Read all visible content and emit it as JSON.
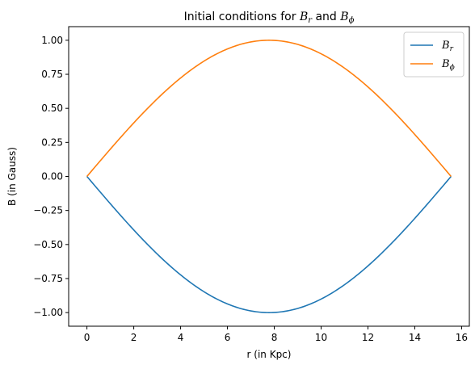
{
  "chart_data": {
    "type": "line",
    "title": {
      "main": "Initial conditions for ",
      "sym1": "B",
      "sub1": "r",
      "mid": " and ",
      "sym2": "B",
      "sub2": "ϕ"
    },
    "xlabel": "r (in Kpc)",
    "ylabel": "B (in Gauss)",
    "xlim": [
      -0.78,
      16.33
    ],
    "ylim": [
      -1.1,
      1.1
    ],
    "xticks": [
      0,
      2,
      4,
      6,
      8,
      10,
      12,
      14,
      16
    ],
    "xtick_labels": [
      "0",
      "2",
      "4",
      "6",
      "8",
      "10",
      "12",
      "14",
      "16"
    ],
    "yticks": [
      -1.0,
      -0.75,
      -0.5,
      -0.25,
      0.0,
      0.25,
      0.5,
      0.75,
      1.0
    ],
    "ytick_labels": [
      "−1.00",
      "−0.75",
      "−0.50",
      "−0.25",
      "0.00",
      "0.25",
      "0.50",
      "0.75",
      "1.00"
    ],
    "grid": false,
    "legend_position": "top-right",
    "series": [
      {
        "name": "B_r",
        "label_sym": "B",
        "label_sub": "r",
        "color": "#1f77b4",
        "formula": "-sin(pi*r/R)",
        "R": 15.55
      },
      {
        "name": "B_phi",
        "label_sym": "B",
        "label_sub": "ϕ",
        "color": "#ff7f0e",
        "formula": "sin(pi*r/R)",
        "R": 15.55
      }
    ],
    "x": [
      0,
      1.5555,
      3.111,
      4.6665,
      6.222,
      7.7775,
      9.333,
      10.8885,
      12.444,
      13.9995,
      15.555
    ],
    "B_r_values": [
      0,
      -0.309,
      -0.588,
      -0.809,
      -0.951,
      -1.0,
      -0.951,
      -0.809,
      -0.588,
      -0.309,
      0
    ],
    "B_phi_values": [
      0,
      0.309,
      0.588,
      0.809,
      0.951,
      1.0,
      0.951,
      0.809,
      0.588,
      0.309,
      0
    ]
  }
}
